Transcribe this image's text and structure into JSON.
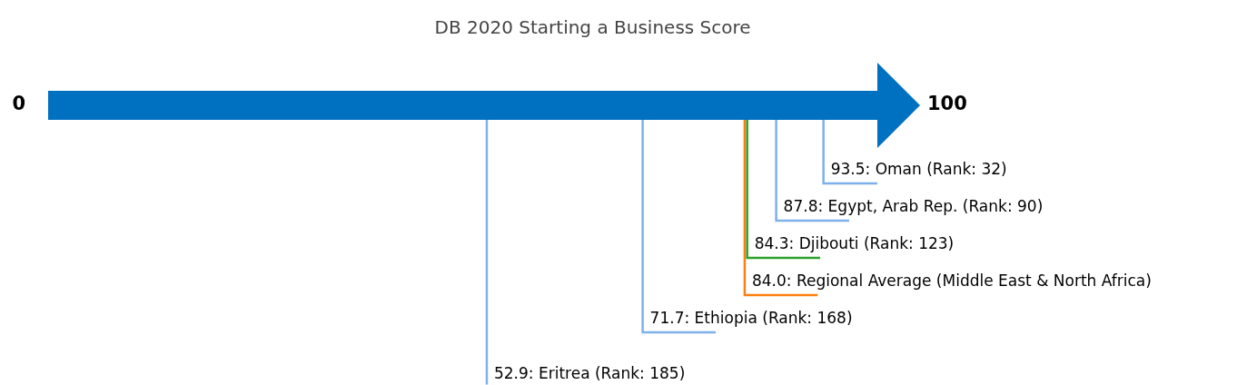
{
  "chart_data": {
    "type": "other",
    "title": "DB 2020 Starting a Business Score",
    "values": [
      93.5,
      87.8,
      84.3,
      84.0,
      71.7,
      52.9
    ],
    "value_labels": [
      "93.5: Oman (Rank: 32)",
      "87.8: Egypt, Arab Rep. (Rank: 90)",
      "84.3: Djibouti (Rank: 123)",
      "84.0: Regional Average (Middle East & North Africa)",
      "71.7: Ethiopia (Rank: 168)",
      "52.9: Eritrea (Rank: 185)"
    ],
    "colors": [
      "#7eb0ea",
      "#7eb0ea",
      "#2ca02c",
      "#ff7f0e",
      "#7eb0ea",
      "#7eb0ea"
    ],
    "color": "#0070c0",
    "annotations": [
      "0",
      "100"
    ]
  }
}
